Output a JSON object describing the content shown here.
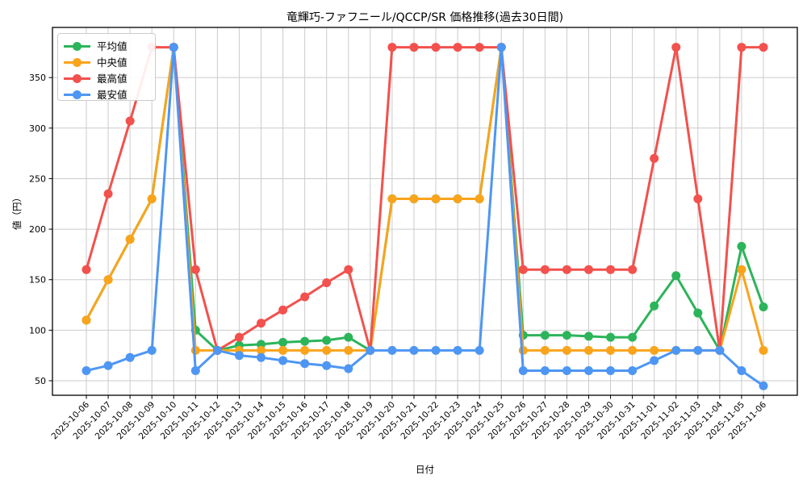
{
  "page": {
    "background": "#ffffff"
  },
  "chart_data": {
    "type": "line",
    "title": "竜輝巧-ファフニール/QCCP/SR  価格推移(過去30日間)",
    "xlabel": "日付",
    "ylabel": "値（円）",
    "x": [
      "2025-10-06",
      "2025-10-07",
      "2025-10-08",
      "2025-10-09",
      "2025-10-10",
      "2025-10-11",
      "2025-10-12",
      "2025-10-13",
      "2025-10-14",
      "2025-10-15",
      "2025-10-16",
      "2025-10-17",
      "2025-10-18",
      "2025-10-19",
      "2025-10-20",
      "2025-10-21",
      "2025-10-22",
      "2025-10-23",
      "2025-10-24",
      "2025-10-25",
      "2025-10-26",
      "2025-10-27",
      "2025-10-28",
      "2025-10-29",
      "2025-10-30",
      "2025-10-31",
      "2025-11-01",
      "2025-11-02",
      "2025-11-03",
      "2025-11-04",
      "2025-11-05",
      "2025-11-06"
    ],
    "series": [
      {
        "name": "平均値",
        "color": "#2cb45a",
        "values": [
          110,
          150,
          190,
          230,
          380,
          100,
          80,
          85,
          86,
          88,
          89,
          90,
          93,
          80,
          230,
          230,
          230,
          230,
          230,
          380,
          95,
          95,
          95,
          94,
          93,
          93,
          124,
          154,
          117,
          80,
          183,
          123
        ]
      },
      {
        "name": "中央値",
        "color": "#f9a41c",
        "values": [
          110,
          150,
          190,
          230,
          380,
          80,
          80,
          80,
          80,
          80,
          80,
          80,
          80,
          80,
          230,
          230,
          230,
          230,
          230,
          380,
          80,
          80,
          80,
          80,
          80,
          80,
          80,
          80,
          80,
          80,
          160,
          80
        ]
      },
      {
        "name": "最高値",
        "color": "#f2514d",
        "values": [
          160,
          235,
          307,
          380,
          380,
          160,
          80,
          93,
          107,
          120,
          133,
          147,
          160,
          80,
          380,
          380,
          380,
          380,
          380,
          380,
          160,
          160,
          160,
          160,
          160,
          160,
          270,
          380,
          230,
          80,
          380,
          380
        ]
      },
      {
        "name": "最安値",
        "color": "#4e96f3",
        "values": [
          60,
          65,
          73,
          80,
          380,
          60,
          80,
          75,
          73,
          70,
          67,
          65,
          62,
          80,
          80,
          80,
          80,
          80,
          80,
          380,
          60,
          60,
          60,
          60,
          60,
          60,
          70,
          80,
          80,
          80,
          60,
          45
        ]
      }
    ],
    "yticks": [
      50,
      100,
      150,
      200,
      250,
      300,
      350
    ],
    "ylim": [
      35,
      400
    ],
    "xtick_rotation": 45,
    "grid": true,
    "grid_color": "#cbcbcb",
    "legend_position": "upper-left"
  }
}
